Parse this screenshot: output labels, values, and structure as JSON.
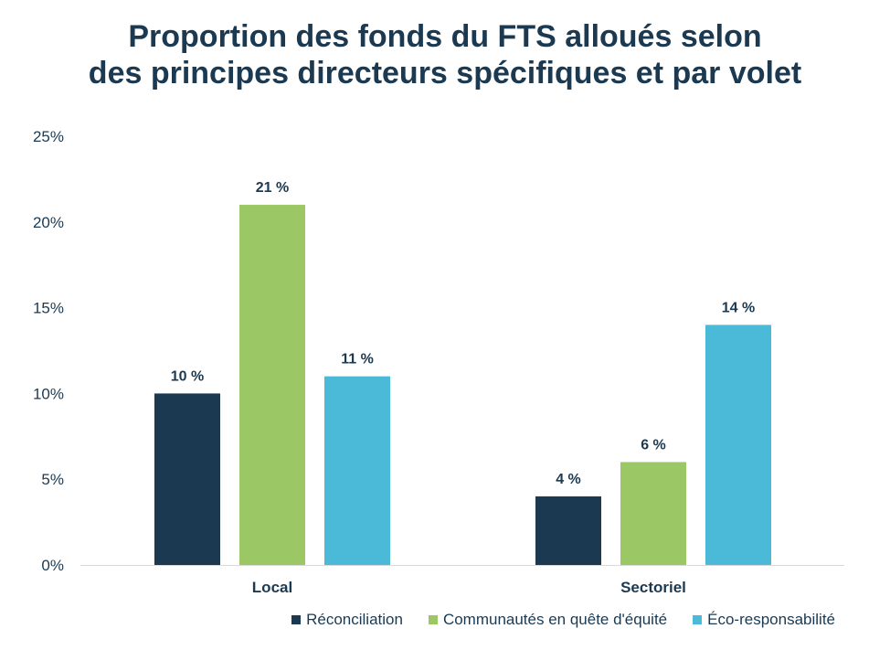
{
  "title_lines": [
    "Proportion des fonds du FTS alloués selon",
    "des principes directeurs spécifiques et par volet"
  ],
  "chart_data": {
    "type": "bar",
    "title": "Proportion des fonds du FTS alloués selon des principes directeurs spécifiques et par volet",
    "categories": [
      "Local",
      "Sectoriel"
    ],
    "series": [
      {
        "name": "Réconciliation",
        "values": [
          10,
          4
        ],
        "labels": [
          "10 %",
          "4 %"
        ],
        "color": "#1b3a52"
      },
      {
        "name": "Communautés en quête d'équité",
        "values": [
          21,
          6
        ],
        "labels": [
          "21 %",
          "6 %"
        ],
        "color": "#9bc865"
      },
      {
        "name": "Éco-responsabilité",
        "values": [
          11,
          14
        ],
        "labels": [
          "11 %",
          "14 %"
        ],
        "color": "#4abad8"
      }
    ],
    "yticks": [
      "0%",
      "5%",
      "10%",
      "15%",
      "20%",
      "25%"
    ],
    "ylim": [
      0,
      25
    ],
    "grid": false,
    "legend_position": "bottom-right",
    "text_color": "#1b3a52",
    "axis_color": "#d9d9d9"
  }
}
